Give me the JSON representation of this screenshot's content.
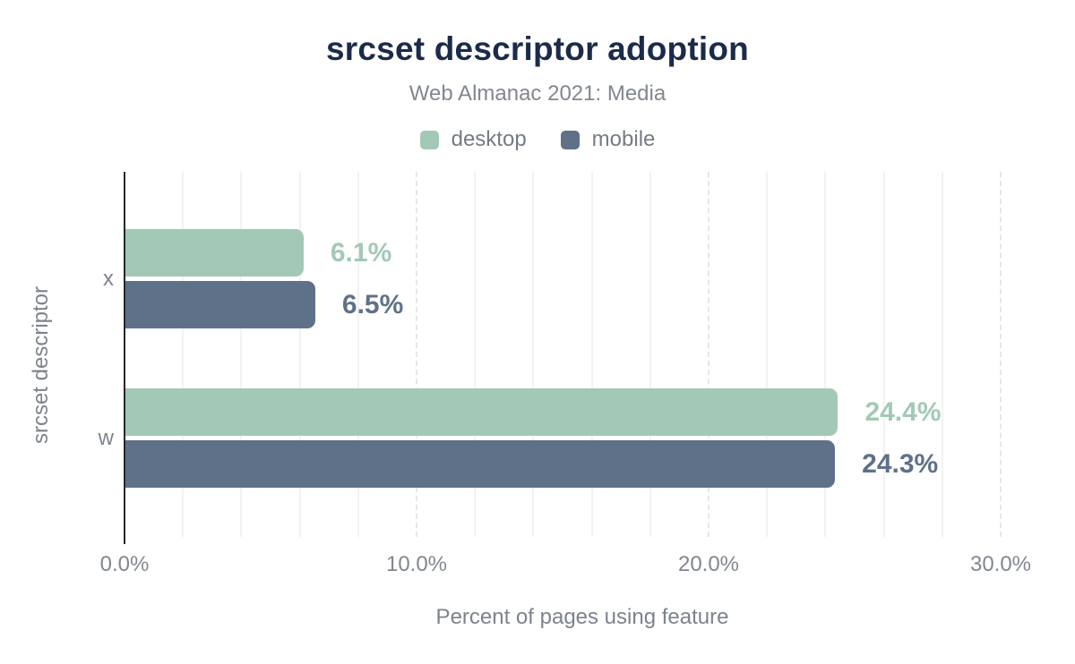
{
  "chart": {
    "title": "srcset descriptor adoption",
    "subtitle": "Web Almanac 2021: Media",
    "x_axis_title": "Percent of pages using feature",
    "y_axis_title": "srcset descriptor"
  },
  "chart_data": {
    "type": "bar",
    "orientation": "horizontal",
    "title": "srcset descriptor adoption",
    "subtitle": "Web Almanac 2021: Media",
    "xlabel": "Percent of pages using feature",
    "ylabel": "srcset descriptor",
    "categories": [
      "x",
      "w"
    ],
    "series": [
      {
        "name": "desktop",
        "color": "#a3c9b6",
        "values": [
          6.1,
          24.4
        ],
        "value_labels": [
          "6.1%",
          "24.4%"
        ]
      },
      {
        "name": "mobile",
        "color": "#5f7189",
        "values": [
          6.5,
          24.3
        ],
        "value_labels": [
          "6.5%",
          "24.3%"
        ]
      }
    ],
    "x_axis": {
      "min": 0,
      "max": 30,
      "tick_labels": [
        "0.0%",
        "10.0%",
        "20.0%",
        "30.0%"
      ],
      "tick_values": [
        0,
        10,
        20,
        30
      ],
      "minor_grid_step": 2,
      "major_grid_step": 10
    },
    "grid": true,
    "legend_position": "top"
  },
  "colors": {
    "title": "#1c2b4a",
    "muted_text": "#7d838d",
    "desktop": "#a3c9b6",
    "mobile": "#5f7189",
    "axis_line": "#24282c",
    "minor_grid": "#f2f2f3",
    "major_grid": "#e5e7ea",
    "background": "#ffffff"
  }
}
